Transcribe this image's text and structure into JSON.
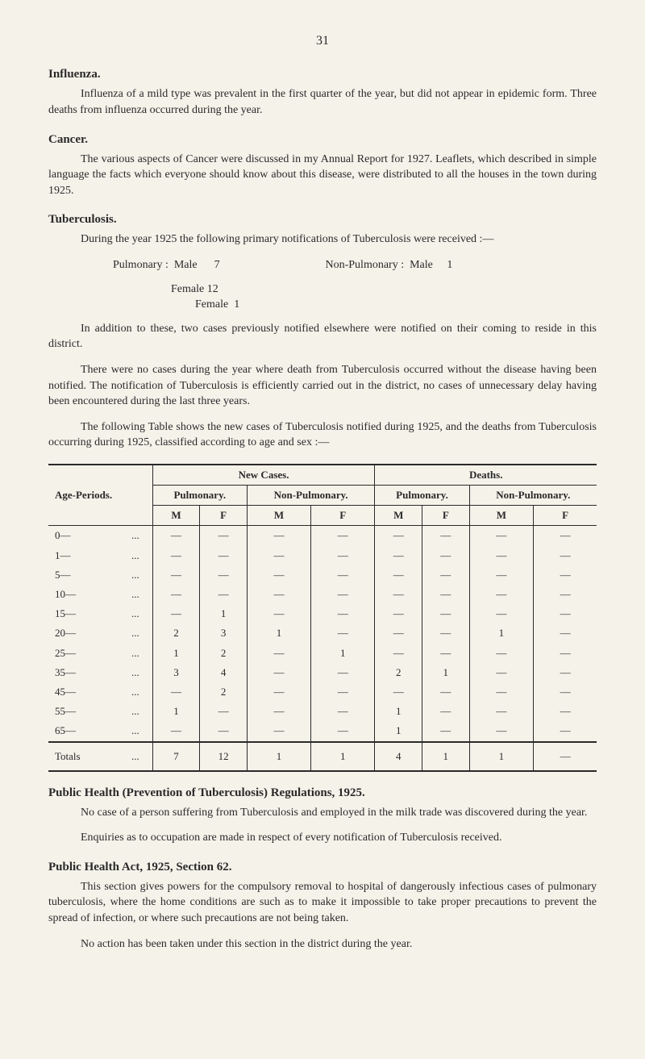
{
  "page_number": "31",
  "sections": {
    "influenza": {
      "heading": "Influenza.",
      "para1": "Influenza of a mild type was prevalent in the first quarter of the year, but did not appear in epidemic form. Three deaths from influenza occurred during the year."
    },
    "cancer": {
      "heading": "Cancer.",
      "para1": "The various aspects of Cancer were discussed in my Annual Report for 1927. Leaflets, which described in simple language the facts which everyone should know about this disease, were distributed to all the houses in the town during 1925."
    },
    "tuberculosis": {
      "heading": "Tuberculosis.",
      "para1": "During the year 1925 the following primary notifications of Tuberculosis were received :—",
      "stats": {
        "pulmonary_label": "Pulmonary :",
        "pulmonary_male": "Male      7",
        "pulmonary_female": "Female 12",
        "nonpulmonary_label": "Non-Pulmonary :",
        "nonpulmonary_male": "Male     1",
        "nonpulmonary_female": "Female  1"
      },
      "para2": "In addition to these, two cases previously notified elsewhere were notified on their coming to reside in this district.",
      "para3": "There were no cases during the year where death from Tuberculosis occurred without the disease having been notified. The notification of Tuberculosis is efficiently carried out in the district, no cases of unnecessary delay having been encountered during the last three years.",
      "para4": "The following Table shows the new cases of Tuberculosis notified during 1925, and the deaths from Tuberculosis occurring during 1925, classified according to age and sex :—"
    },
    "prevention": {
      "heading": "Public Health (Prevention of Tuberculosis) Regulations, 1925.",
      "para1": "No case of a person suffering from Tuberculosis and employed in the milk trade was discovered during the year.",
      "para2": "Enquiries as to occupation are made in respect of every notification of Tuberculosis received."
    },
    "section62": {
      "heading": "Public Health Act, 1925, Section 62.",
      "para1": "This section gives powers for the compulsory removal to hospital of dangerously infectious cases of pulmonary tuberculosis, where the home conditions are such as to make it impossible to take proper precautions to prevent the spread of infection, or where such precautions are not being taken.",
      "para2": "No action has been taken under this section in the district during the year."
    }
  },
  "table": {
    "header_age": "Age-Periods.",
    "header_new": "New Cases.",
    "header_deaths": "Deaths.",
    "header_pulmonary": "Pulmonary.",
    "header_nonpulmonary": "Non-Pulmonary.",
    "header_m": "M",
    "header_f": "F",
    "rows": [
      {
        "age": "0—",
        "vals": [
          "—",
          "—",
          "—",
          "—",
          "—",
          "—",
          "—",
          "—"
        ]
      },
      {
        "age": "1—",
        "vals": [
          "—",
          "—",
          "—",
          "—",
          "—",
          "—",
          "—",
          "—"
        ]
      },
      {
        "age": "5—",
        "vals": [
          "—",
          "—",
          "—",
          "—",
          "—",
          "—",
          "—",
          "—"
        ]
      },
      {
        "age": "10—",
        "vals": [
          "—",
          "—",
          "—",
          "—",
          "—",
          "—",
          "—",
          "—"
        ]
      },
      {
        "age": "15—",
        "vals": [
          "—",
          "1",
          "—",
          "—",
          "—",
          "—",
          "—",
          "—"
        ]
      },
      {
        "age": "20—",
        "vals": [
          "2",
          "3",
          "1",
          "—",
          "—",
          "—",
          "1",
          "—"
        ]
      },
      {
        "age": "25—",
        "vals": [
          "1",
          "2",
          "—",
          "1",
          "—",
          "—",
          "—",
          "—"
        ]
      },
      {
        "age": "35—",
        "vals": [
          "3",
          "4",
          "—",
          "—",
          "2",
          "1",
          "—",
          "—"
        ]
      },
      {
        "age": "45—",
        "vals": [
          "—",
          "2",
          "—",
          "—",
          "—",
          "—",
          "—",
          "—"
        ]
      },
      {
        "age": "55—",
        "vals": [
          "1",
          "—",
          "—",
          "—",
          "1",
          "—",
          "—",
          "—"
        ]
      },
      {
        "age": "65—",
        "vals": [
          "—",
          "—",
          "—",
          "—",
          "1",
          "—",
          "—",
          "—"
        ]
      }
    ],
    "totals_label": "Totals",
    "totals": [
      "7",
      "12",
      "1",
      "1",
      "4",
      "1",
      "1",
      "—"
    ]
  }
}
